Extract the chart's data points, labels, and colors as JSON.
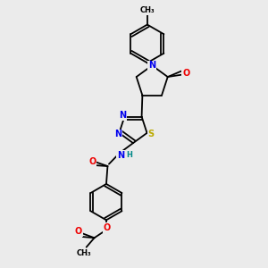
{
  "bg_color": "#ebebeb",
  "atom_colors": {
    "N": "#0000ee",
    "O": "#ee0000",
    "S": "#bbaa00",
    "C": "#000000",
    "H": "#008888"
  },
  "font_size": 7.0
}
